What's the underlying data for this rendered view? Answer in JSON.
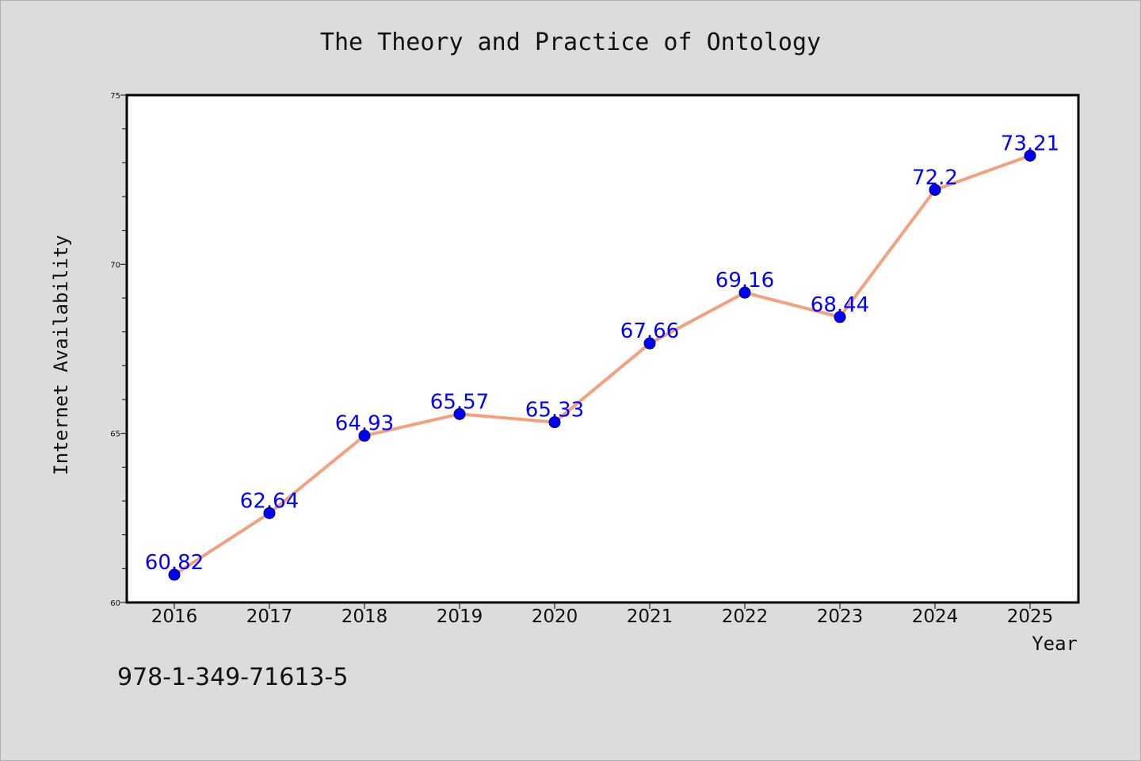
{
  "chart_data": {
    "type": "line",
    "title": "The Theory and Practice of Ontology",
    "xlabel": "Year",
    "ylabel": "Internet Availability",
    "x": [
      "2016",
      "2017",
      "2018",
      "2019",
      "2020",
      "2021",
      "2022",
      "2023",
      "2024",
      "2025"
    ],
    "series": [
      {
        "values": [
          60.82,
          62.64,
          64.93,
          65.57,
          65.33,
          67.66,
          69.16,
          68.44,
          72.2,
          73.21
        ],
        "labels": [
          "60.82",
          "62.64",
          "64.93",
          "65.57",
          "65.33",
          "67.66",
          "69.16",
          "68.44",
          "72.2",
          "73.21"
        ]
      }
    ],
    "ylim": [
      60,
      75
    ],
    "yticks_major": [
      60,
      65,
      70,
      75
    ],
    "yticks_major_labels": [
      "60",
      "65",
      "70",
      "75"
    ],
    "yticks_minor_step": 1,
    "grid": false,
    "legend": "none",
    "colors": {
      "line": "#f4a07f",
      "marker": "#0000ff",
      "data_label": "#0000ff",
      "background": "#dcdcdc",
      "plot_area": "#ffffff"
    }
  },
  "footer": {
    "isbn": "978-1-349-71613-5"
  }
}
